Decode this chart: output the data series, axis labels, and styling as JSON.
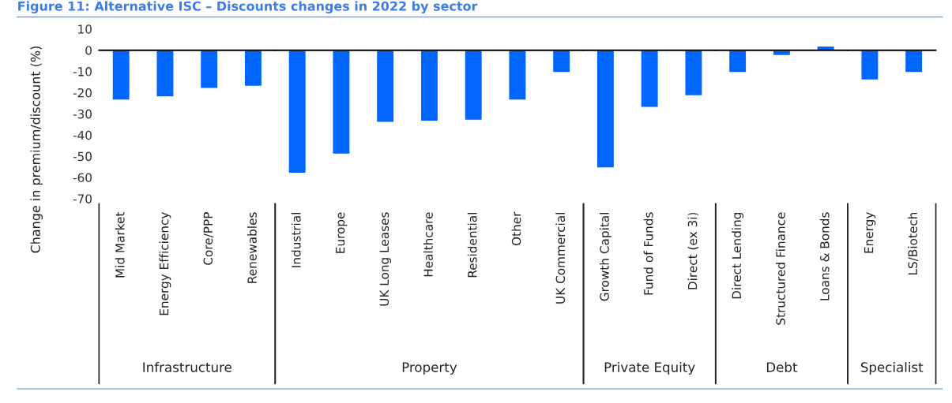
{
  "chart_data": [
    {
      "type": "bar",
      "title": "Figure 11: Alternative ISC – Discounts changes in 2022 by sector",
      "ylabel": "Change in premium/discount (%)",
      "xlabel": "Infrastructure",
      "categories": [
        "Mid Market",
        "Energy Efficiency",
        "Core/PPP",
        "Renewables"
      ],
      "values": [
        -23.5,
        -22,
        -18,
        -17
      ],
      "color": "#0066ff",
      "ylim": [
        -70,
        10
      ],
      "yticks": [
        10,
        0,
        -10,
        -20,
        -30,
        -40,
        -50,
        -60,
        -70
      ],
      "ref_lines": [
        {
          "axis": "y",
          "value": 0,
          "color": "#000000"
        }
      ]
    },
    {
      "type": "bar",
      "xlabel": "Property",
      "categories": [
        "Industrial",
        "Europe",
        "UK Long Leases",
        "Healthcare",
        "Residential",
        "Other",
        "UK Commercial"
      ],
      "values": [
        -58,
        -49,
        -34,
        -33.5,
        -33,
        -23.5,
        -10.5
      ],
      "color": "#0066ff",
      "ylim": [
        -70,
        10
      ],
      "tick_labels": "x",
      "ref_lines": [
        {
          "axis": "y",
          "value": 0,
          "color": "#000000"
        }
      ]
    },
    {
      "type": "bar",
      "xlabel": "Private Equity",
      "categories": [
        "Growth Capital",
        "Fund of Funds",
        "Direct (ex 3i)"
      ],
      "values": [
        -55.5,
        -27,
        -21.5
      ],
      "color": "#0066ff",
      "ylim": [
        -70,
        10
      ],
      "tick_labels": "x",
      "ref_lines": [
        {
          "axis": "y",
          "value": 0,
          "color": "#000000"
        }
      ]
    },
    {
      "type": "bar",
      "xlabel": "Debt",
      "categories": [
        "Direct Lending",
        "Structured Finance",
        "Loans & Bonds"
      ],
      "values": [
        -10.5,
        -2.5,
        2
      ],
      "color": "#0066ff",
      "ylim": [
        -70,
        10
      ],
      "tick_labels": "x",
      "ref_lines": [
        {
          "axis": "y",
          "value": 0,
          "color": "#000000"
        }
      ]
    },
    {
      "type": "bar",
      "xlabel": "Specialist",
      "categories": [
        "Energy",
        "LS/Biotech"
      ],
      "values": [
        -14,
        -10.5
      ],
      "color": "#0066ff",
      "ylim": [
        -70,
        10
      ],
      "tick_labels": "x",
      "ref_lines": [
        {
          "axis": "y",
          "value": 0,
          "color": "#000000"
        }
      ]
    }
  ]
}
